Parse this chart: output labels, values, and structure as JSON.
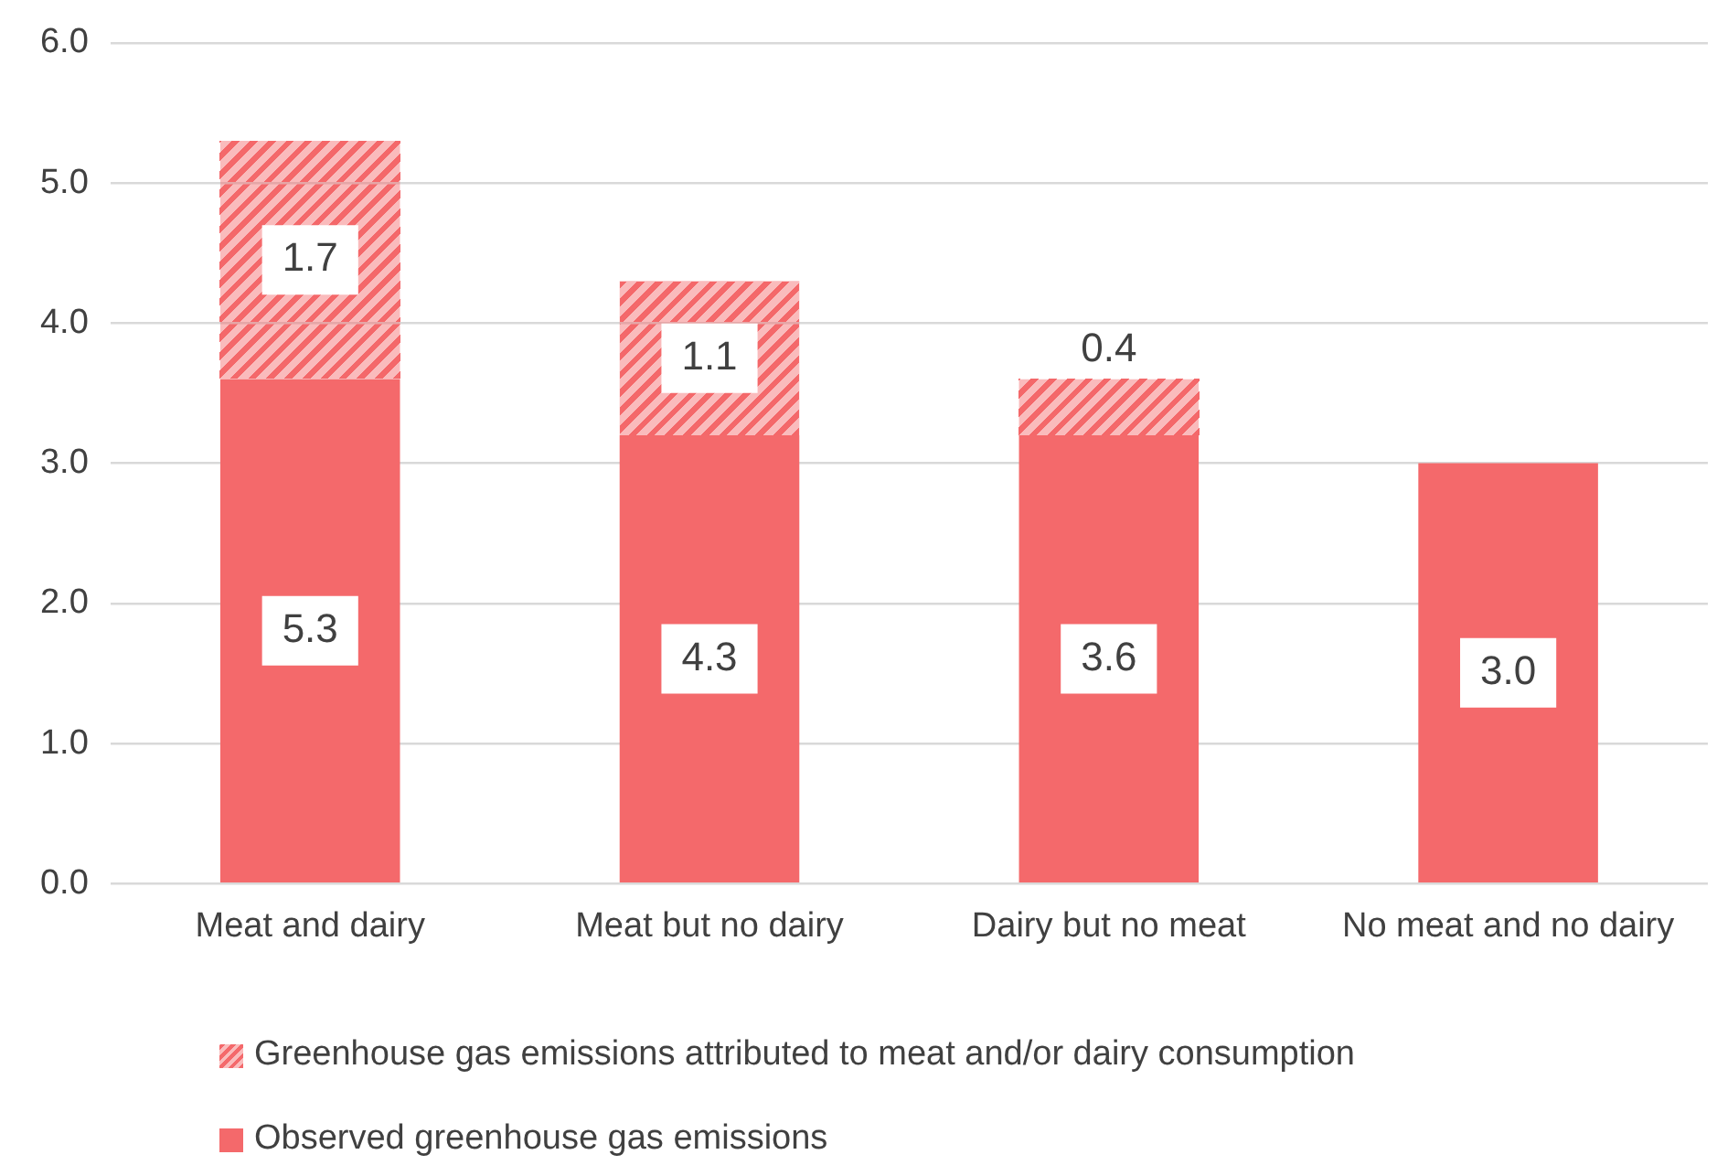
{
  "chart_data": {
    "type": "bar",
    "stacked": true,
    "categories": [
      "Meat and dairy",
      "Meat but no dairy",
      "Dairy but no meat",
      "No meat and no dairy"
    ],
    "series": [
      {
        "name": "Observed greenhouse gas emissions",
        "color": "#f4696b",
        "values": [
          3.6,
          3.2,
          3.2,
          3.0
        ]
      },
      {
        "name": "Greenhouse gas emissions attributed to meat and/or dairy consumption",
        "color": "#f4696b",
        "values": [
          1.7,
          1.1,
          0.4,
          null
        ],
        "value_labels": [
          "1.7",
          "1.1",
          "0.4",
          null
        ]
      }
    ],
    "ylim": [
      0,
      6
    ],
    "yticks": [
      {
        "value": 0,
        "label": "0.0"
      },
      {
        "value": 1,
        "label": "1.0"
      },
      {
        "value": 2,
        "label": "2.0"
      },
      {
        "value": 3,
        "label": "3.0"
      },
      {
        "value": 4,
        "label": "4.0"
      },
      {
        "value": 5,
        "label": "5.0"
      },
      {
        "value": 6,
        "label": "6.0"
      }
    ],
    "totals": [
      "5.3",
      "4.3",
      "3.6",
      "3.0"
    ],
    "grid": "y",
    "legend": "bottom"
  }
}
